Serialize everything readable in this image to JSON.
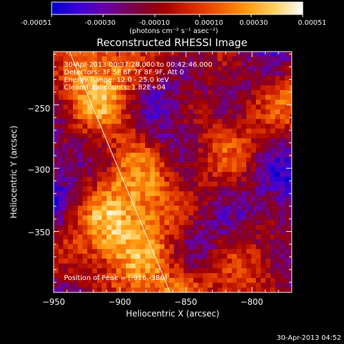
{
  "colorbar": {
    "ticks": [
      "-0.00051",
      "-0.00030",
      "-0.00010",
      "0.00010",
      "0.00030",
      "0.00051"
    ],
    "label": "(photons cm⁻² s⁻¹ asec⁻²)",
    "colormap": [
      "#0000cc",
      "#3f00d4",
      "#6a00a0",
      "#7a0040",
      "#a00000",
      "#d42800",
      "#f05a00",
      "#ff9a10",
      "#ffd060",
      "#ffffff"
    ]
  },
  "annotations": [
    "30-Apr-2013 00:37:28.000 to 00:42:46.000",
    "Detectors: 3F 5F 6F 7F 8F 9F, Att 0",
    "Energy Range: 12.0 - 25.0 keV",
    "Clean  Total counts: 1.82E+04"
  ],
  "peak_label": "Position of Peak = [-916,-386]",
  "timestamp": "30-Apr-2013 04:52",
  "chart_data": {
    "type": "heatmap",
    "title": "Reconstructed RHESSI Image",
    "xlabel": "Heliocentric X (arcsec)",
    "ylabel": "Heliocentric Y (arcsec)",
    "xlim": [
      -950,
      -770
    ],
    "ylim": [
      -398,
      -208
    ],
    "xticks": [
      -950,
      -900,
      -850,
      -800
    ],
    "yticks": [
      -250,
      -300,
      -350
    ],
    "xtick_labels": [
      "−950",
      "−900",
      "−850",
      "−800"
    ],
    "ytick_labels": [
      "−250",
      "−300",
      "−350"
    ],
    "value_range": [
      -0.00051,
      0.00051
    ],
    "peak": {
      "x": -916,
      "y": -386
    },
    "limb_line": [
      [
        -938,
        -208
      ],
      [
        -862,
        -398
      ]
    ]
  }
}
